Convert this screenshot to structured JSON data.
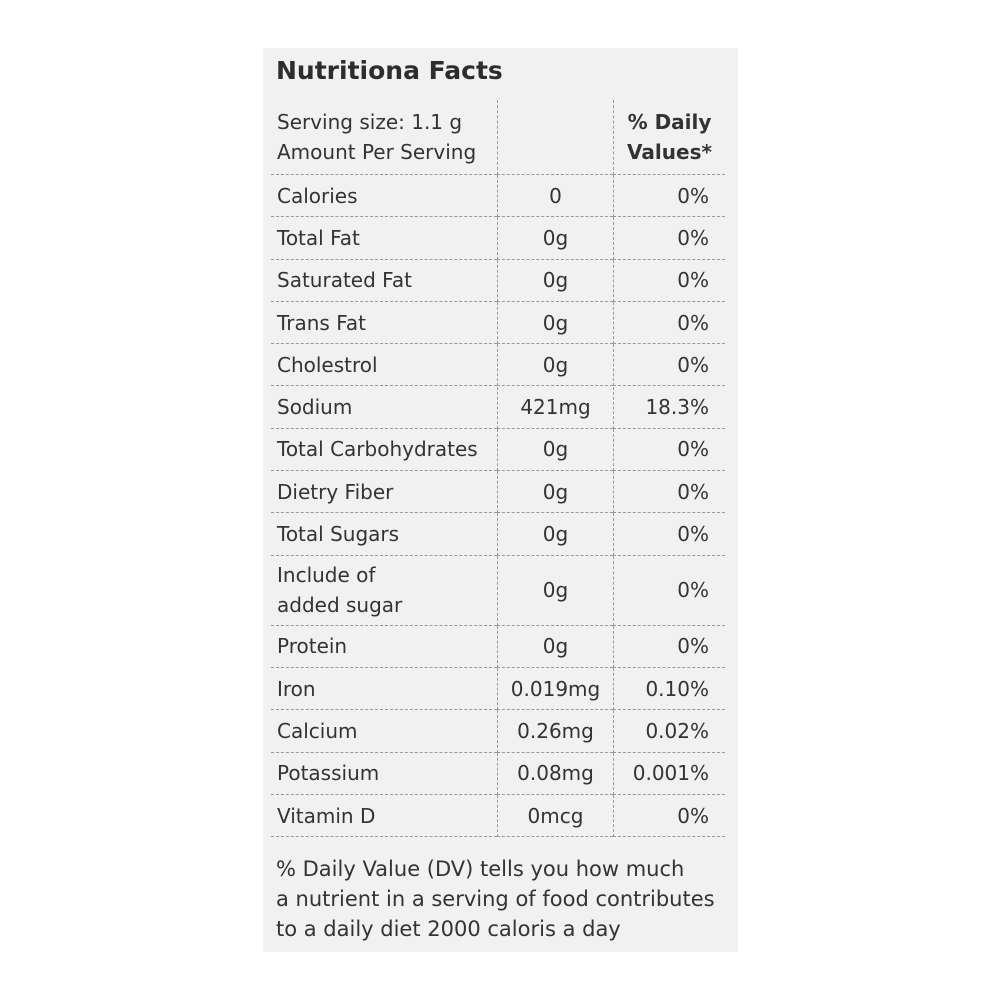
{
  "header": {
    "title": "Nutritiona Facts"
  },
  "table": {
    "head": {
      "serving": [
        "Serving size: 1.1 g",
        "Amount Per Serving"
      ],
      "daily": [
        "% Daily",
        "Values*"
      ]
    },
    "rows": [
      [
        "Calories",
        "0",
        "0%"
      ],
      [
        "Total Fat",
        "0g",
        "0%"
      ],
      [
        "Saturated Fat",
        "0g",
        "0%"
      ],
      [
        "Trans Fat",
        "0g",
        "0%"
      ],
      [
        "Cholestrol",
        "0g",
        "0%"
      ],
      [
        "Sodium",
        "421mg",
        "18.3%"
      ],
      [
        "Total Carbohydrates",
        "0g",
        "0%"
      ],
      [
        "Dietry Fiber",
        "0g",
        "0%"
      ],
      [
        "Total Sugars",
        "0g",
        "0%"
      ],
      [
        "Include of\nadded sugar",
        "0g",
        "0%"
      ],
      [
        "Protein",
        "0g",
        "0%"
      ],
      [
        "Iron",
        "0.019mg",
        "0.10%"
      ],
      [
        "Calcium",
        "0.26mg",
        "0.02%"
      ],
      [
        "Potassium",
        "0.08mg",
        "0.001%"
      ],
      [
        "Vitamin D",
        "0mcg",
        "0%"
      ]
    ]
  },
  "footer": {
    "lines": [
      "% Daily Value (DV) tells you how much",
      "a nutrient in a serving of food contributes",
      "to a daily diet 2000 caloris a day"
    ]
  }
}
